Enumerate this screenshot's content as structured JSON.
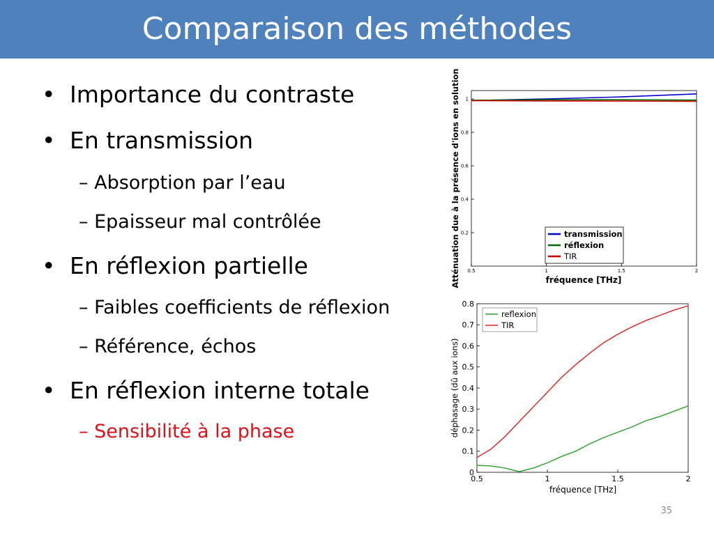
{
  "slide": {
    "title": "Comparaison des méthodes",
    "page_number": "35",
    "bullets": [
      {
        "text": "Importance du contraste",
        "level": 1
      },
      {
        "text": "En transmission",
        "level": 1
      },
      {
        "text": "Absorption par l’eau",
        "level": 2
      },
      {
        "text": "Epaisseur mal contrôlée",
        "level": 2
      },
      {
        "text": "En réflexion partielle",
        "level": 1
      },
      {
        "text": "Faibles coefficients de réflexion",
        "level": 2
      },
      {
        "text": "Référence, échos",
        "level": 2
      },
      {
        "text": "En réflexion interne totale",
        "level": 1
      },
      {
        "text": "Sensibilité à la phase",
        "level": 2,
        "highlight": "#e0101a"
      }
    ],
    "bullet_glyph": "•",
    "dash_glyph": "–"
  },
  "chart_data": [
    {
      "type": "line",
      "title": "",
      "xlabel": "fréquence [THz]",
      "ylabel": "Atténuation due à la présence d'ions en solution",
      "xlim": [
        0.5,
        2
      ],
      "ylim": [
        0,
        1.05
      ],
      "xticks": [
        "0.5",
        "1",
        "1.5",
        "2"
      ],
      "yticks": [
        "0.2",
        "0.4",
        "0.6",
        "0.8",
        "1"
      ],
      "legend": "bottom-right",
      "series": [
        {
          "name": "transmission",
          "color": "#0000cc",
          "x": [
            0.5,
            1,
            1.5,
            2
          ],
          "y": [
            0.99,
            1.0,
            1.012,
            1.03
          ]
        },
        {
          "name": "réflexion",
          "color": "#006600",
          "x": [
            0.5,
            1,
            1.5,
            2
          ],
          "y": [
            0.992,
            0.995,
            0.995,
            0.993
          ]
        },
        {
          "name": "TIR",
          "color": "#cc0000",
          "x": [
            0.5,
            1,
            1.5,
            2
          ],
          "y": [
            0.99,
            0.988,
            0.987,
            0.986
          ]
        }
      ]
    },
    {
      "type": "line",
      "title": "",
      "xlabel": "fréquence [THz]",
      "ylabel": "déphasage (dû aux ions)",
      "xlim": [
        0.5,
        2
      ],
      "ylim": [
        0,
        0.8
      ],
      "xticks": [
        "0.5",
        "1",
        "1.5",
        "2"
      ],
      "yticks": [
        "0",
        "0.1",
        "0.2",
        "0.3",
        "0.4",
        "0.5",
        "0.6",
        "0.7",
        "0.8"
      ],
      "legend": "top-left",
      "series": [
        {
          "name": "reflexion",
          "color": "#2ca02c",
          "x": [
            0.5,
            0.6,
            0.7,
            0.8,
            0.9,
            1.0,
            1.1,
            1.2,
            1.3,
            1.4,
            1.5,
            1.6,
            1.7,
            1.8,
            1.9,
            2.0
          ],
          "y": [
            0.033,
            0.03,
            0.02,
            0.003,
            0.02,
            0.045,
            0.075,
            0.1,
            0.135,
            0.165,
            0.19,
            0.215,
            0.245,
            0.265,
            0.29,
            0.315
          ]
        },
        {
          "name": "TIR",
          "color": "#e02020",
          "x": [
            0.5,
            0.6,
            0.7,
            0.8,
            0.9,
            1.0,
            1.1,
            1.2,
            1.3,
            1.4,
            1.5,
            1.6,
            1.7,
            1.8,
            1.9,
            2.0
          ],
          "y": [
            0.07,
            0.11,
            0.17,
            0.24,
            0.31,
            0.38,
            0.45,
            0.51,
            0.565,
            0.615,
            0.655,
            0.69,
            0.72,
            0.745,
            0.77,
            0.79
          ]
        }
      ]
    }
  ]
}
